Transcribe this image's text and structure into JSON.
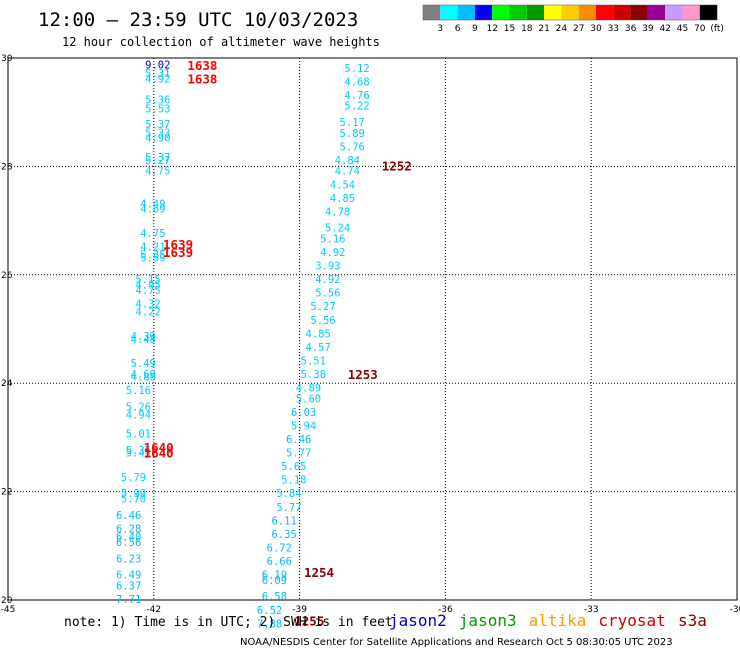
{
  "title": "12:00 – 23:59 UTC 10/03/2023",
  "subtitle": "12 hour collection of altimeter wave heights",
  "colorbar": {
    "colors": [
      "#808080",
      "#00ffff",
      "#00bfff",
      "#0000ff",
      "#00ff00",
      "#00cc00",
      "#009900",
      "#ffff00",
      "#ffcc00",
      "#ff8c00",
      "#ff0000",
      "#cc0000",
      "#8b0000",
      "#990099",
      "#cc99ff",
      "#ff99cc",
      "#000000"
    ],
    "labels": [
      "3",
      "6",
      "9",
      "12",
      "15",
      "18",
      "21",
      "24",
      "27",
      "30",
      "33",
      "36",
      "39",
      "42",
      "45",
      "70",
      "(ft)"
    ]
  },
  "note": "note: 1) Time is in UTC; 2) SWH is in feet",
  "legend": [
    {
      "name": "jason2",
      "color": "#0000cc"
    },
    {
      "name": "jason3",
      "color": "#009900"
    },
    {
      "name": "altika",
      "color": "#ff9900"
    },
    {
      "name": "cryosat",
      "color": "#cc0000"
    },
    {
      "name": "s3a",
      "color": "#8b0000"
    }
  ],
  "credit": "NOAA/NESDIS Center for Satellite Applications and Research   Oct  5 08:30:05 UTC 2023",
  "chart_data": {
    "type": "scatter",
    "xlim": [
      -45,
      -30
    ],
    "ylim": [
      20,
      30
    ],
    "xticks": [
      "-45",
      "-42",
      "-39",
      "-36",
      "-33",
      "-30"
    ],
    "yticks": [
      "30",
      "28",
      "26",
      "24",
      "22",
      "20"
    ],
    "xtick_values": [
      -45,
      -42,
      -39,
      -36,
      -33,
      -30
    ],
    "ytick_values": [
      30,
      28,
      26,
      24,
      22,
      20
    ],
    "grid": "dotted",
    "series": [
      {
        "name": "cryosat",
        "points": [
          {
            "x": -42.0,
            "y": 29.88,
            "v": "9.02",
            "c": "#0000cc"
          },
          {
            "x": -42.0,
            "y": 29.72,
            "v": "5.31",
            "c": "#00ccff"
          },
          {
            "x": -42.0,
            "y": 29.62,
            "v": "4.92",
            "c": "#00ccff"
          },
          {
            "x": -42.0,
            "y": 29.23,
            "v": "5.36",
            "c": "#00ccff"
          },
          {
            "x": -42.0,
            "y": 29.07,
            "v": "5.53",
            "c": "#00ccff"
          },
          {
            "x": -42.0,
            "y": 28.78,
            "v": "5.37",
            "c": "#00ccff"
          },
          {
            "x": -42.0,
            "y": 28.63,
            "v": "5.33",
            "c": "#00ccff"
          },
          {
            "x": -42.0,
            "y": 28.53,
            "v": "4.90",
            "c": "#00ccff"
          },
          {
            "x": -42.0,
            "y": 28.17,
            "v": "5.37",
            "c": "#00ccff"
          },
          {
            "x": -42.0,
            "y": 28.12,
            "v": "5.27",
            "c": "#00ccff"
          },
          {
            "x": -42.0,
            "y": 27.92,
            "v": "4.75",
            "c": "#00ccff"
          },
          {
            "x": -42.1,
            "y": 27.32,
            "v": "4.49",
            "c": "#00ccff"
          },
          {
            "x": -42.1,
            "y": 27.22,
            "v": "4.69",
            "c": "#00ccff"
          },
          {
            "x": -42.1,
            "y": 26.77,
            "v": "4.75",
            "c": "#00ccff"
          },
          {
            "x": -42.1,
            "y": 26.52,
            "v": "4.21",
            "c": "#00ccff"
          },
          {
            "x": -42.1,
            "y": 26.37,
            "v": "5.35",
            "c": "#00ccff"
          },
          {
            "x": -42.1,
            "y": 26.32,
            "v": "5.59",
            "c": "#00ccff"
          },
          {
            "x": -42.2,
            "y": 25.92,
            "v": "5.15",
            "c": "#00ccff"
          },
          {
            "x": -42.2,
            "y": 25.82,
            "v": "4.95",
            "c": "#00ccff"
          },
          {
            "x": -42.2,
            "y": 25.72,
            "v": "4.75",
            "c": "#00ccff"
          },
          {
            "x": -42.2,
            "y": 25.47,
            "v": "4.32",
            "c": "#00ccff"
          },
          {
            "x": -42.2,
            "y": 25.32,
            "v": "4.22",
            "c": "#00ccff"
          },
          {
            "x": -42.3,
            "y": 24.87,
            "v": "4.39",
            "c": "#00ccff"
          },
          {
            "x": -42.3,
            "y": 24.82,
            "v": "4.48",
            "c": "#00ccff"
          },
          {
            "x": -42.3,
            "y": 24.37,
            "v": "5.49",
            "c": "#00ccff"
          },
          {
            "x": -42.3,
            "y": 24.17,
            "v": "4.69",
            "c": "#00ccff"
          },
          {
            "x": -42.3,
            "y": 24.12,
            "v": "4.88",
            "c": "#00ccff"
          },
          {
            "x": -42.4,
            "y": 23.87,
            "v": "5.16",
            "c": "#00ccff"
          },
          {
            "x": -42.4,
            "y": 23.57,
            "v": "5.26",
            "c": "#00ccff"
          },
          {
            "x": -42.4,
            "y": 23.42,
            "v": "4.94",
            "c": "#00ccff"
          },
          {
            "x": -42.4,
            "y": 23.07,
            "v": "5.01",
            "c": "#00ccff"
          },
          {
            "x": -42.4,
            "y": 22.77,
            "v": "5.35",
            "c": "#00ccff"
          },
          {
            "x": -42.4,
            "y": 22.72,
            "v": "5.43",
            "c": "#00ccff"
          },
          {
            "x": -42.5,
            "y": 22.27,
            "v": "5.79",
            "c": "#00ccff"
          },
          {
            "x": -42.5,
            "y": 21.97,
            "v": "5.99",
            "c": "#00ccff"
          },
          {
            "x": -42.5,
            "y": 21.87,
            "v": "5.70",
            "c": "#00ccff"
          },
          {
            "x": -42.6,
            "y": 21.57,
            "v": "6.46",
            "c": "#00bbff"
          },
          {
            "x": -42.6,
            "y": 21.32,
            "v": "6.28",
            "c": "#00bbff"
          },
          {
            "x": -42.6,
            "y": 21.17,
            "v": "6.40",
            "c": "#00bbff"
          },
          {
            "x": -42.6,
            "y": 21.07,
            "v": "6.56",
            "c": "#00bbff"
          },
          {
            "x": -42.6,
            "y": 20.77,
            "v": "6.23",
            "c": "#00bbff"
          },
          {
            "x": -42.6,
            "y": 20.47,
            "v": "6.49",
            "c": "#00bbff"
          },
          {
            "x": -42.6,
            "y": 20.27,
            "v": "6.37",
            "c": "#00bbff"
          },
          {
            "x": -42.6,
            "y": 20.02,
            "v": "7.71",
            "c": "#00bbff"
          }
        ]
      },
      {
        "name": "s3a",
        "points": [
          {
            "x": -37.9,
            "y": 29.82,
            "v": "5.12",
            "c": "#00ccff"
          },
          {
            "x": -37.9,
            "y": 29.57,
            "v": "4.68",
            "c": "#00ccff"
          },
          {
            "x": -37.9,
            "y": 29.32,
            "v": "4.76",
            "c": "#00ccff"
          },
          {
            "x": -37.9,
            "y": 29.12,
            "v": "5.22",
            "c": "#00ccff"
          },
          {
            "x": -38.0,
            "y": 28.82,
            "v": "5.17",
            "c": "#00ccff"
          },
          {
            "x": -38.0,
            "y": 28.62,
            "v": "5.89",
            "c": "#00ccff"
          },
          {
            "x": -38.0,
            "y": 28.37,
            "v": "5.76",
            "c": "#00ccff"
          },
          {
            "x": -38.1,
            "y": 28.12,
            "v": "4.84",
            "c": "#00ccff"
          },
          {
            "x": -38.1,
            "y": 27.92,
            "v": "4.74",
            "c": "#00ccff"
          },
          {
            "x": -38.2,
            "y": 27.67,
            "v": "4.54",
            "c": "#00ccff"
          },
          {
            "x": -38.2,
            "y": 27.42,
            "v": "4.85",
            "c": "#00ccff"
          },
          {
            "x": -38.3,
            "y": 27.17,
            "v": "4.78",
            "c": "#00ccff"
          },
          {
            "x": -38.3,
            "y": 26.87,
            "v": "5.24",
            "c": "#00ccff"
          },
          {
            "x": -38.4,
            "y": 26.67,
            "v": "5.16",
            "c": "#00ccff"
          },
          {
            "x": -38.4,
            "y": 26.42,
            "v": "4.92",
            "c": "#00ccff"
          },
          {
            "x": -38.5,
            "y": 26.17,
            "v": "3.93",
            "c": "#00ccff"
          },
          {
            "x": -38.5,
            "y": 25.92,
            "v": "4.92",
            "c": "#00ccff"
          },
          {
            "x": -38.5,
            "y": 25.67,
            "v": "5.56",
            "c": "#00ccff"
          },
          {
            "x": -38.6,
            "y": 25.42,
            "v": "5.27",
            "c": "#00ccff"
          },
          {
            "x": -38.6,
            "y": 25.17,
            "v": "5.56",
            "c": "#00ccff"
          },
          {
            "x": -38.7,
            "y": 24.92,
            "v": "4.85",
            "c": "#00ccff"
          },
          {
            "x": -38.7,
            "y": 24.67,
            "v": "4.57",
            "c": "#00ccff"
          },
          {
            "x": -38.8,
            "y": 24.42,
            "v": "5.51",
            "c": "#00ccff"
          },
          {
            "x": -38.8,
            "y": 24.17,
            "v": "5.38",
            "c": "#00ccff"
          },
          {
            "x": -38.9,
            "y": 23.92,
            "v": "4.89",
            "c": "#00ccff"
          },
          {
            "x": -38.9,
            "y": 23.72,
            "v": "5.60",
            "c": "#00ccff"
          },
          {
            "x": -39.0,
            "y": 23.47,
            "v": "6.03",
            "c": "#00bbff"
          },
          {
            "x": -39.0,
            "y": 23.22,
            "v": "5.94",
            "c": "#00ccff"
          },
          {
            "x": -39.1,
            "y": 22.97,
            "v": "6.46",
            "c": "#00bbff"
          },
          {
            "x": -39.1,
            "y": 22.72,
            "v": "5.77",
            "c": "#00ccff"
          },
          {
            "x": -39.2,
            "y": 22.47,
            "v": "5.65",
            "c": "#00ccff"
          },
          {
            "x": -39.2,
            "y": 22.22,
            "v": "5.18",
            "c": "#00ccff"
          },
          {
            "x": -39.3,
            "y": 21.97,
            "v": "5.84",
            "c": "#00ccff"
          },
          {
            "x": -39.3,
            "y": 21.72,
            "v": "5.77",
            "c": "#00ccff"
          },
          {
            "x": -39.4,
            "y": 21.47,
            "v": "6.11",
            "c": "#00bbff"
          },
          {
            "x": -39.4,
            "y": 21.22,
            "v": "6.35",
            "c": "#00bbff"
          },
          {
            "x": -39.5,
            "y": 20.97,
            "v": "6.72",
            "c": "#00bbff"
          },
          {
            "x": -39.5,
            "y": 20.72,
            "v": "6.66",
            "c": "#00bbff"
          },
          {
            "x": -39.6,
            "y": 20.47,
            "v": "6.19",
            "c": "#00bbff"
          },
          {
            "x": -39.6,
            "y": 20.37,
            "v": "6.09",
            "c": "#00bbff"
          },
          {
            "x": -39.6,
            "y": 20.07,
            "v": "6.58",
            "c": "#00bbff"
          },
          {
            "x": -39.7,
            "y": 19.82,
            "v": "6.52",
            "c": "#00bbff"
          },
          {
            "x": -39.7,
            "y": 19.57,
            "v": "7.88",
            "c": "#00bbff"
          }
        ]
      }
    ],
    "time_labels": [
      {
        "x": -41.0,
        "y": 29.85,
        "text": "1638",
        "c": "#ff0000"
      },
      {
        "x": -41.0,
        "y": 29.6,
        "text": "1638",
        "c": "#ff0000"
      },
      {
        "x": -41.5,
        "y": 26.55,
        "text": "1639",
        "c": "#ff0000"
      },
      {
        "x": -41.5,
        "y": 26.4,
        "text": "1639",
        "c": "#ff0000"
      },
      {
        "x": -41.9,
        "y": 22.8,
        "text": "1640",
        "c": "#ff0000"
      },
      {
        "x": -41.9,
        "y": 22.7,
        "text": "1640",
        "c": "#ff0000"
      },
      {
        "x": -37.0,
        "y": 28.0,
        "text": "1252",
        "c": "#8b0000"
      },
      {
        "x": -37.7,
        "y": 24.15,
        "text": "1253",
        "c": "#8b0000"
      },
      {
        "x": -38.6,
        "y": 20.5,
        "text": "1254",
        "c": "#8b0000"
      },
      {
        "x": -38.8,
        "y": 19.6,
        "text": "1255",
        "c": "#8b0000"
      }
    ]
  }
}
